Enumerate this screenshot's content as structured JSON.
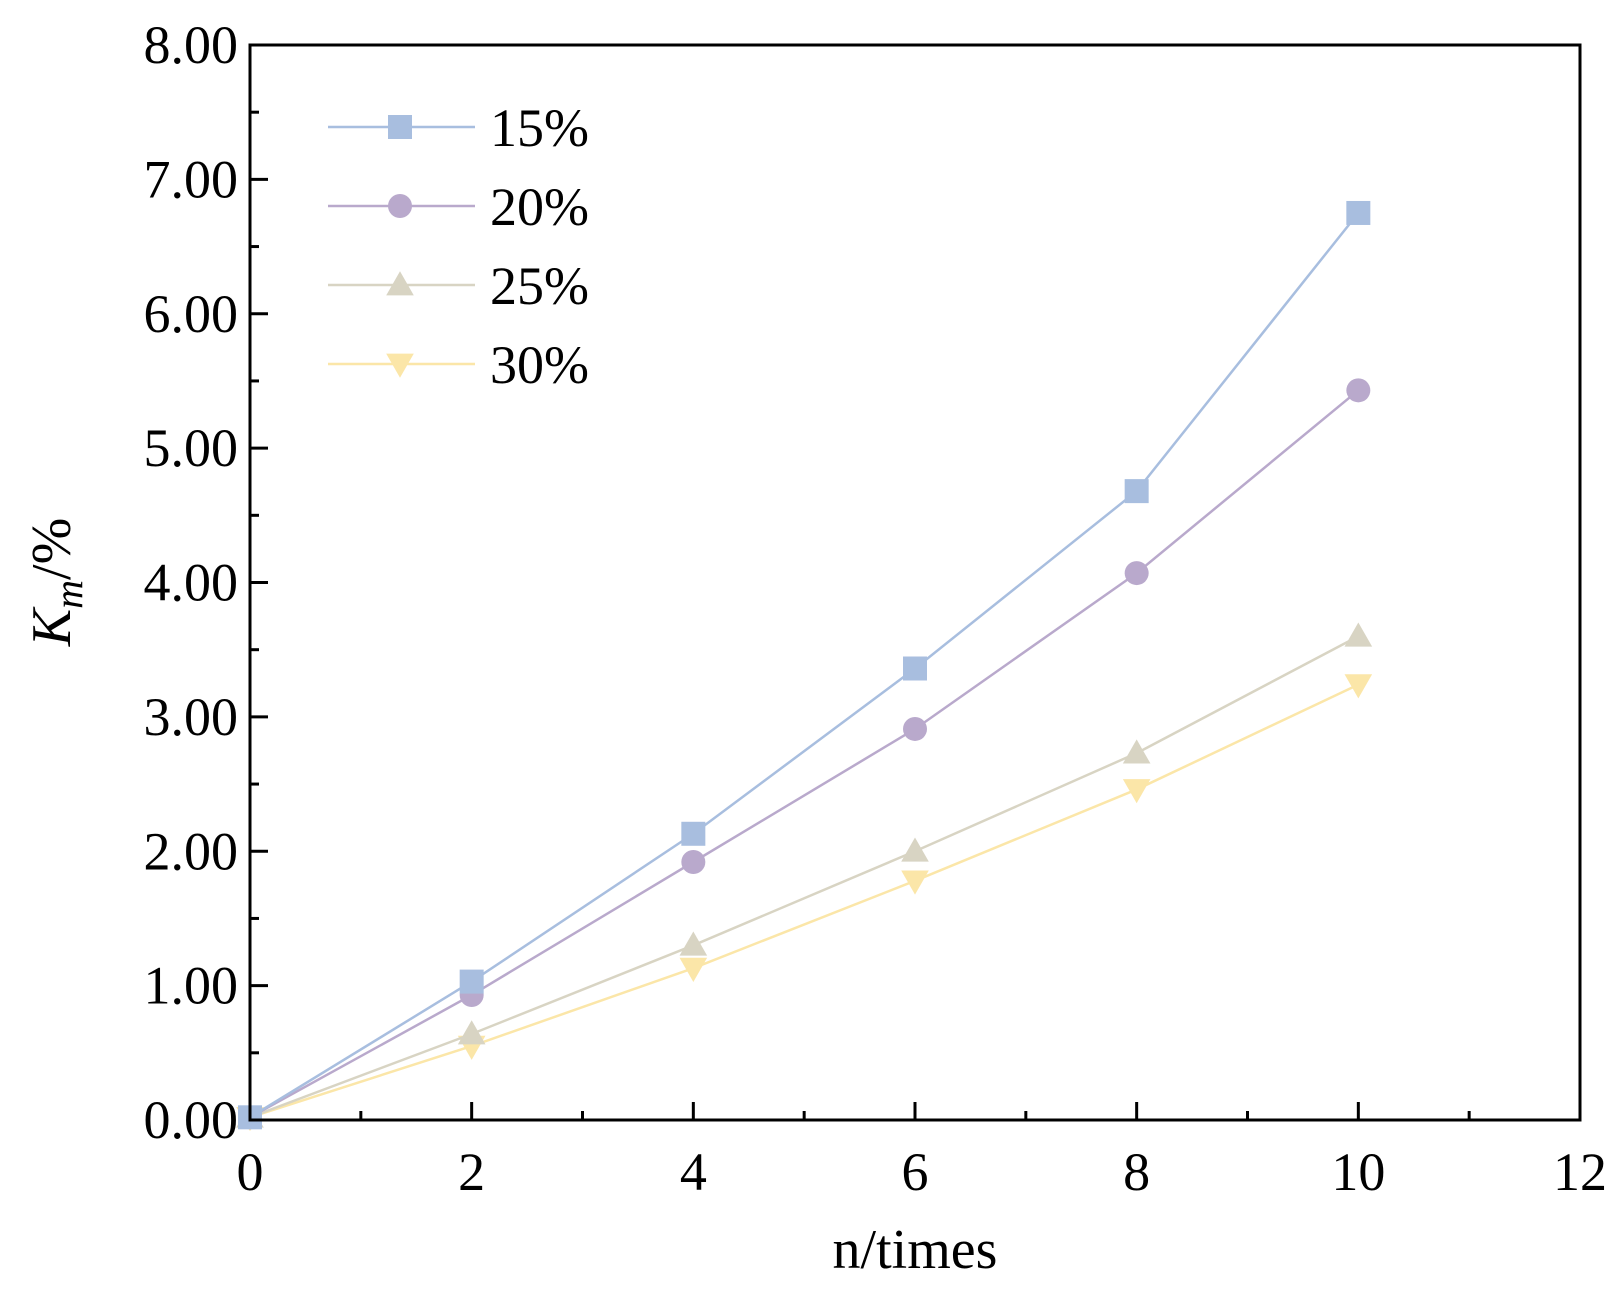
{
  "chart_data": {
    "type": "line",
    "title": "",
    "xlabel": "n/times",
    "ylabel": {
      "main": "K",
      "subscript": "m",
      "suffix": "/%"
    },
    "xlim": [
      0,
      12
    ],
    "ylim": [
      0,
      8
    ],
    "x_ticks": [
      "0",
      "2",
      "4",
      "6",
      "8",
      "10",
      "12"
    ],
    "y_ticks": [
      "0.00",
      "1.00",
      "2.00",
      "3.00",
      "4.00",
      "5.00",
      "6.00",
      "7.00",
      "8.00"
    ],
    "x": [
      0,
      2,
      4,
      6,
      8,
      10
    ],
    "legend_position": "top-left",
    "series": [
      {
        "name": "15%",
        "marker": "square",
        "color": "#a8bedf",
        "values": [
          0.02,
          1.03,
          2.13,
          3.36,
          4.68,
          6.75
        ]
      },
      {
        "name": "20%",
        "marker": "circle",
        "color": "#b9a9cc",
        "values": [
          0.02,
          0.93,
          1.92,
          2.91,
          4.07,
          5.43
        ]
      },
      {
        "name": "25%",
        "marker": "triangle-up",
        "color": "#d8d4c3",
        "values": [
          0.02,
          0.64,
          1.3,
          2.0,
          2.73,
          3.6
        ]
      },
      {
        "name": "30%",
        "marker": "triangle-down",
        "color": "#fbe6a8",
        "values": [
          0.02,
          0.55,
          1.13,
          1.78,
          2.46,
          3.24
        ]
      }
    ]
  }
}
